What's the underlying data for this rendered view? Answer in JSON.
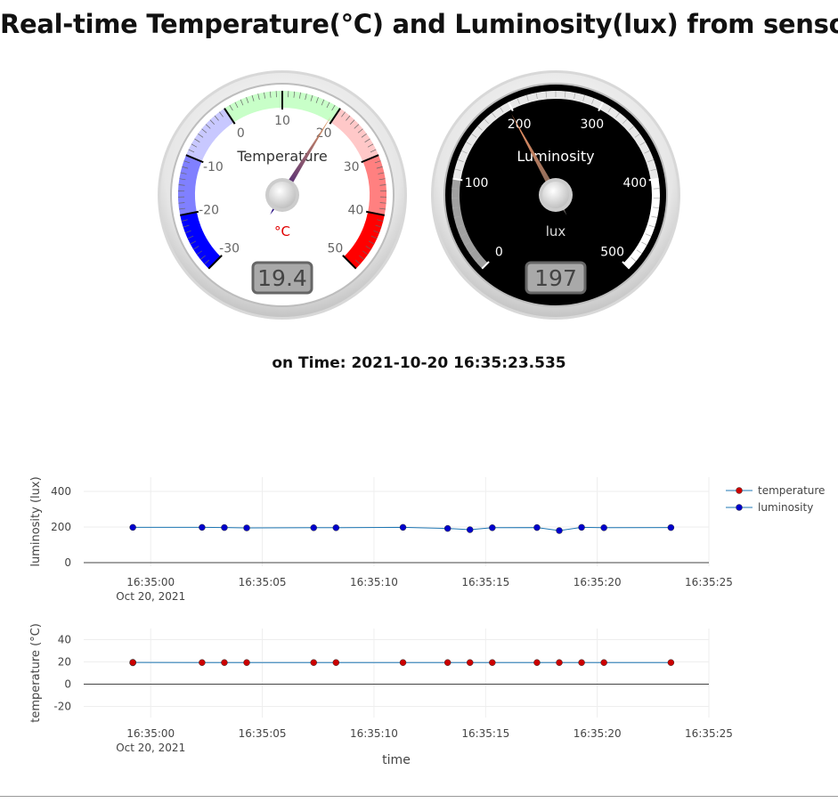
{
  "page": {
    "title": "Real-time Temperature(°C) and Luminosity(lux) from sensors",
    "on_time_label": "on Time: 2021-10-20 16:35:23.535"
  },
  "gauges": {
    "temperature": {
      "title": "Temperature",
      "units": "°C",
      "min": -30,
      "max": 50,
      "value": 19.4,
      "value_text": "19.4",
      "ticks": [
        -30,
        -20,
        -10,
        0,
        10,
        20,
        30,
        40,
        50
      ],
      "tick_labels": [
        "-30",
        "-20",
        "-10",
        "0",
        "10",
        "20",
        "30",
        "40",
        "50"
      ],
      "highlights": [
        {
          "from": -30,
          "to": -20,
          "color": "#0000ff"
        },
        {
          "from": -20,
          "to": -10,
          "color": "#8080ff"
        },
        {
          "from": -10,
          "to": 0,
          "color": "#c8c8ff"
        },
        {
          "from": 0,
          "to": 20,
          "color": "#c8ffc8"
        },
        {
          "from": 20,
          "to": 30,
          "color": "#ffc8c8"
        },
        {
          "from": 30,
          "to": 40,
          "color": "#ff8080"
        },
        {
          "from": 40,
          "to": 50,
          "color": "#ff0000"
        }
      ],
      "colors": {
        "plate": "#ffffff",
        "numbers": "#666666",
        "title": "#333333",
        "units": "#e00000"
      }
    },
    "luminosity": {
      "title": "Luminosity",
      "units": "lux",
      "min": 0,
      "max": 500,
      "value": 197,
      "value_text": "197",
      "ticks": [
        0,
        100,
        200,
        300,
        400,
        500
      ],
      "tick_labels": [
        "0",
        "100",
        "200",
        "300",
        "400",
        "500"
      ],
      "highlights": [
        {
          "from": 0,
          "to": 100,
          "color": "#a0a0a0"
        },
        {
          "from": 100,
          "to": 400,
          "color": "#e8e8e8"
        },
        {
          "from": 400,
          "to": 500,
          "color": "#ffffff"
        }
      ],
      "colors": {
        "plate": "#000000",
        "numbers": "#ffffff",
        "title": "#ffffff",
        "units": "#dddddd"
      }
    }
  },
  "chart_data": [
    {
      "type": "line",
      "ylabel": "luminosity (lux)",
      "xlabel": "",
      "yticks": [
        0,
        200,
        400
      ],
      "ylim": [
        -20,
        480
      ],
      "xlim": [
        "2021-10-20 16:34:57",
        "2021-10-20 16:35:25"
      ],
      "xtick_labels": [
        "16:35:00",
        "16:35:05",
        "16:35:10",
        "16:35:15",
        "16:35:20",
        "16:35:25"
      ],
      "xtick_date_label": "Oct 20, 2021",
      "grid": true,
      "series": [
        {
          "name": "luminosity",
          "color": "#0000cc",
          "line_color": "#1f77b4",
          "x": [
            "16:34:59.2",
            "16:35:02.3",
            "16:35:03.3",
            "16:35:04.3",
            "16:35:07.3",
            "16:35:08.3",
            "16:35:11.3",
            "16:35:13.3",
            "16:35:14.3",
            "16:35:15.3",
            "16:35:17.3",
            "16:35:18.3",
            "16:35:19.3",
            "16:35:20.3",
            "16:35:23.3"
          ],
          "y": [
            198,
            198,
            197,
            195,
            196,
            196,
            198,
            192,
            185,
            196,
            197,
            180,
            198,
            196,
            197
          ]
        }
      ]
    },
    {
      "type": "line",
      "ylabel": "temperature (°C)",
      "xlabel": "time",
      "yticks": [
        -20,
        0,
        20,
        40
      ],
      "ylim": [
        -30,
        50
      ],
      "xlim": [
        "2021-10-20 16:34:57",
        "2021-10-20 16:35:25"
      ],
      "xtick_labels": [
        "16:35:00",
        "16:35:05",
        "16:35:10",
        "16:35:15",
        "16:35:20",
        "16:35:25"
      ],
      "xtick_date_label": "Oct 20, 2021",
      "grid": true,
      "series": [
        {
          "name": "temperature",
          "color": "#cc0000",
          "line_color": "#1f77b4",
          "x": [
            "16:34:59.2",
            "16:34:59.2",
            "16:34:59.2",
            "16:34:59.2",
            "16:35:02.3",
            "16:35:03.3",
            "16:35:04.3",
            "16:35:07.3",
            "16:35:08.3",
            "16:35:11.3",
            "16:35:13.3",
            "16:35:14.3",
            "16:35:15.3",
            "16:35:17.3",
            "16:35:18.3",
            "16:35:19.3",
            "16:35:20.3",
            "16:35:23.3"
          ],
          "y": [
            19.4,
            19.6,
            19.2,
            19.5,
            19.4,
            19.4,
            19.4,
            19.4,
            19.4,
            19.4,
            19.4,
            19.4,
            19.4,
            19.4,
            19.4,
            19.4,
            19.4,
            19.4
          ]
        }
      ]
    }
  ],
  "legend": {
    "placement": "top-right",
    "items": [
      {
        "label": "temperature",
        "color": "#cc0000"
      },
      {
        "label": "luminosity",
        "color": "#0000cc"
      }
    ]
  }
}
